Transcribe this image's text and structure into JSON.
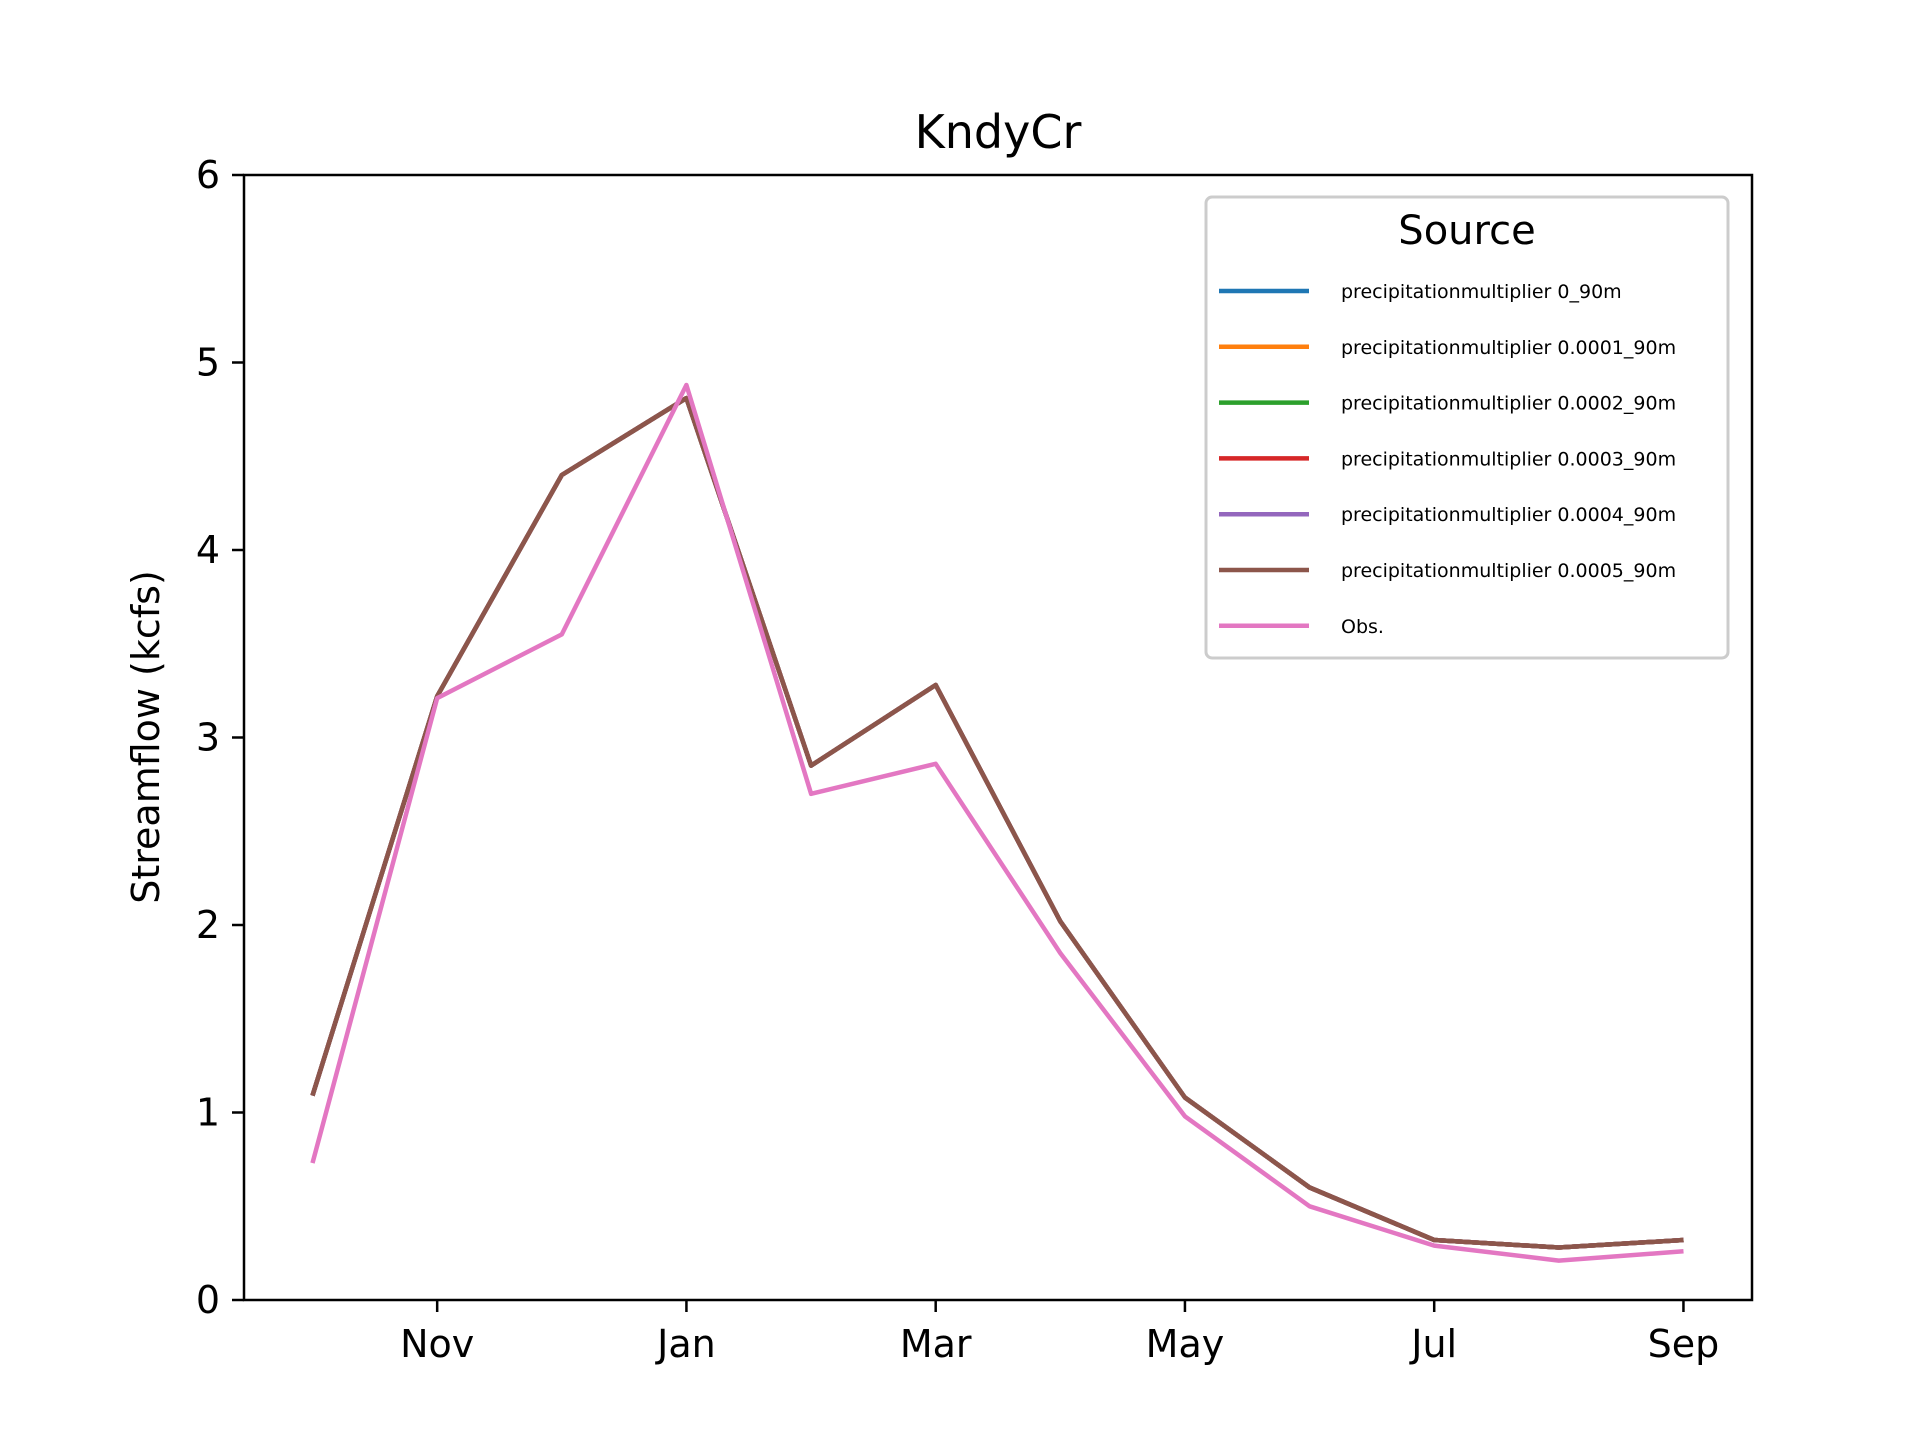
{
  "chart_data": {
    "type": "line",
    "title": "KndyCr",
    "xlabel": "",
    "ylabel": "Streamflow (kcfs)",
    "ylim": [
      0,
      6
    ],
    "yticks": [
      "0",
      "1",
      "2",
      "3",
      "4",
      "5",
      "6"
    ],
    "x_month_index": [
      0,
      1,
      2,
      3,
      4,
      5,
      6,
      7,
      8,
      9,
      10,
      11
    ],
    "xlim": [
      -0.55,
      11.55
    ],
    "x_tick_positions": [
      1,
      3,
      5,
      7,
      9,
      11
    ],
    "x_tick_labels": [
      "Nov",
      "Jan",
      "Mar",
      "May",
      "Jul",
      "Sep"
    ],
    "grid": false,
    "legend": {
      "title": "Source",
      "placement": "top-right"
    },
    "series": [
      {
        "name": "precipitationmultiplier 0_90m",
        "color": "#1f77b4",
        "values": [
          1.09,
          3.22,
          4.4,
          4.81,
          2.85,
          3.28,
          2.02,
          1.08,
          0.6,
          0.32,
          0.28,
          0.32
        ]
      },
      {
        "name": "precipitationmultiplier 0.0001_90m",
        "color": "#ff7f0e",
        "values": [
          1.09,
          3.22,
          4.4,
          4.81,
          2.85,
          3.28,
          2.02,
          1.08,
          0.6,
          0.32,
          0.28,
          0.32
        ]
      },
      {
        "name": "precipitationmultiplier 0.0002_90m",
        "color": "#2ca02c",
        "values": [
          1.09,
          3.22,
          4.4,
          4.81,
          2.85,
          3.28,
          2.02,
          1.08,
          0.6,
          0.32,
          0.28,
          0.32
        ]
      },
      {
        "name": "precipitationmultiplier 0.0003_90m",
        "color": "#d62728",
        "values": [
          1.09,
          3.22,
          4.4,
          4.81,
          2.85,
          3.28,
          2.02,
          1.08,
          0.6,
          0.32,
          0.28,
          0.32
        ]
      },
      {
        "name": "precipitationmultiplier 0.0004_90m",
        "color": "#9467bd",
        "values": [
          1.09,
          3.22,
          4.4,
          4.81,
          2.85,
          3.28,
          2.02,
          1.08,
          0.6,
          0.32,
          0.28,
          0.32
        ]
      },
      {
        "name": "precipitationmultiplier 0.0005_90m",
        "color": "#8c564b",
        "values": [
          1.09,
          3.22,
          4.4,
          4.81,
          2.85,
          3.28,
          2.02,
          1.08,
          0.6,
          0.32,
          0.28,
          0.32
        ]
      },
      {
        "name": "Obs.",
        "color": "#e377c2",
        "values": [
          0.73,
          3.21,
          3.55,
          4.88,
          2.7,
          2.86,
          1.85,
          0.98,
          0.5,
          0.29,
          0.21,
          0.26
        ]
      }
    ]
  }
}
